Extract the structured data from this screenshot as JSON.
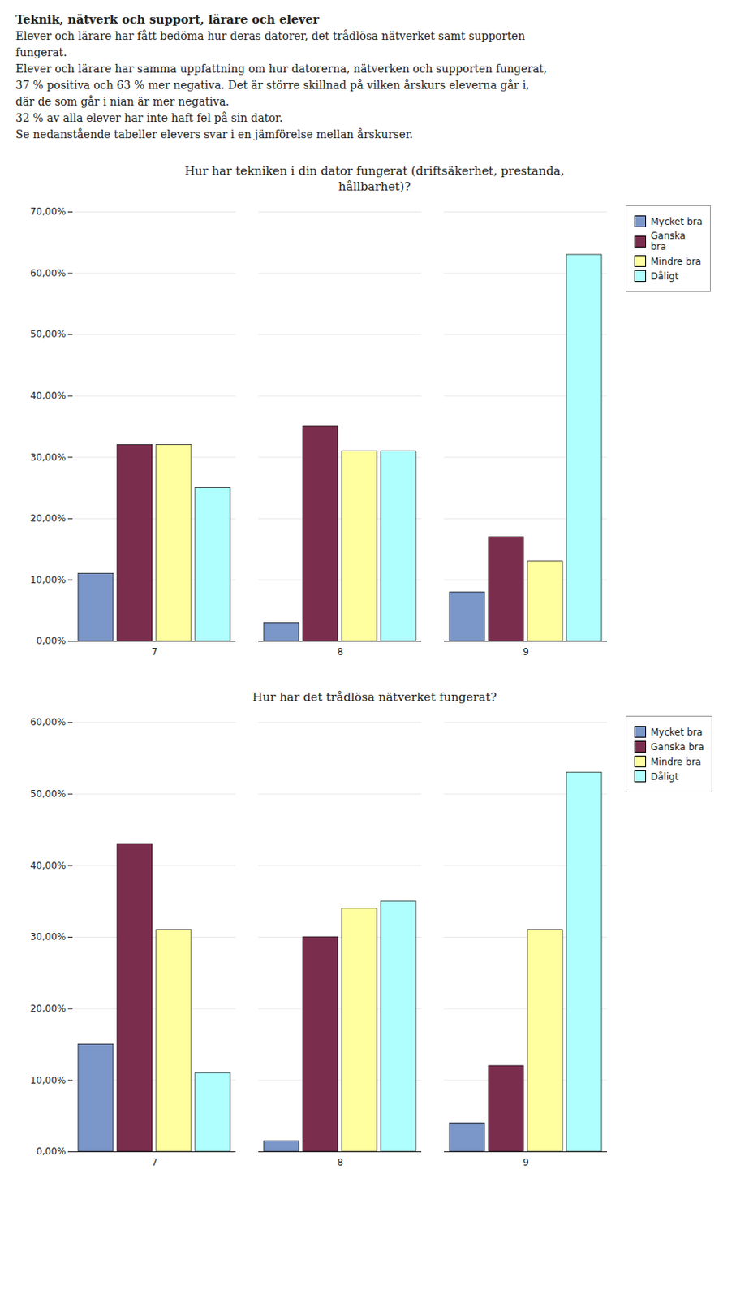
{
  "title": "Teknik, nätverk och support, lärare och elever",
  "annotations": [
    "Elever och lärare har fått bedöma hur deras datorer, det trådlösa nätverket samt supporten",
    "fungerat.",
    "Elever och lärare har samma uppfattning om hur datorerna, nätverken och supporten fungerat,",
    "37 % positiva och 63 % mer negativa. Det är större skillnad på vilken årskurs eleverna går i,",
    "där de som går i nian är mer negativa.",
    "32 % av alla elever har inte haft fel på sin dator.",
    "Se nedanstående tabeller elevers svar i en jämförelse mellan årskurser."
  ],
  "chart_data": [
    {
      "type": "bar",
      "title": "Hur har tekniken i din dator fungerat (driftsäkerhet, prestanda,\nhållbarhet)?",
      "categories": [
        "7",
        "8",
        "9"
      ],
      "series": [
        {
          "name": "Mycket bra",
          "color": "#7B96C8",
          "values": [
            0.11,
            0.03,
            0.08
          ]
        },
        {
          "name": "Ganska\nbra",
          "color": "#7B2D4E",
          "values": [
            0.32,
            0.35,
            0.17
          ]
        },
        {
          "name": "Mindre bra",
          "color": "#FFFFA0",
          "values": [
            0.32,
            0.31,
            0.13
          ]
        },
        {
          "name": "Dåligt",
          "color": "#B0FFFF",
          "values": [
            0.25,
            0.31,
            0.63
          ]
        }
      ],
      "ylim": [
        0,
        0.7
      ],
      "yticks": [
        {
          "value": 0.0,
          "label": "0,00%"
        },
        {
          "value": 0.1,
          "label": "10,00%"
        },
        {
          "value": 0.2,
          "label": "20,00%"
        },
        {
          "value": 0.3,
          "label": "30,00%"
        },
        {
          "value": 0.4,
          "label": "40,00%"
        },
        {
          "value": 0.5,
          "label": "50,00%"
        },
        {
          "value": 0.6,
          "label": "60,00%"
        },
        {
          "value": 0.7,
          "label": "70,00%"
        }
      ],
      "grid": true,
      "legend": "upper right"
    },
    {
      "type": "bar",
      "title": "Hur har det trådlösa nätverket fungerat?",
      "categories": [
        "7",
        "8",
        "9"
      ],
      "series": [
        {
          "name": "Mycket bra",
          "color": "#7B96C8",
          "values": [
            0.15,
            0.015,
            0.04
          ]
        },
        {
          "name": "Ganska bra",
          "color": "#7B2D4E",
          "values": [
            0.43,
            0.3,
            0.12
          ]
        },
        {
          "name": "Mindre bra",
          "color": "#FFFFA0",
          "values": [
            0.31,
            0.34,
            0.31
          ]
        },
        {
          "name": "Dåligt",
          "color": "#B0FFFF",
          "values": [
            0.11,
            0.35,
            0.53
          ]
        }
      ],
      "ylim": [
        0,
        0.6
      ],
      "yticks": [
        {
          "value": 0.0,
          "label": "0,00%"
        },
        {
          "value": 0.1,
          "label": "10,00%"
        },
        {
          "value": 0.2,
          "label": "20,00%"
        },
        {
          "value": 0.3,
          "label": "30,00%"
        },
        {
          "value": 0.4,
          "label": "40,00%"
        },
        {
          "value": 0.5,
          "label": "50,00%"
        },
        {
          "value": 0.6,
          "label": "60,00%"
        }
      ],
      "grid": true,
      "legend": "upper right"
    }
  ]
}
